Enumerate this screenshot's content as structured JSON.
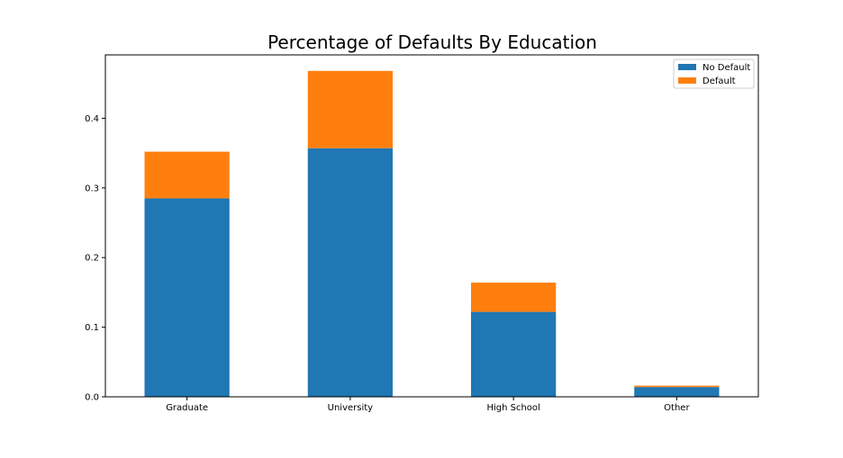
{
  "chart_data": {
    "type": "bar",
    "stacked": true,
    "title": "Percentage of Defaults By Education",
    "xlabel": "",
    "ylabel": "",
    "categories": [
      "Graduate",
      "University",
      "High School",
      "Other"
    ],
    "series": [
      {
        "name": "No Default",
        "values": [
          0.285,
          0.357,
          0.122,
          0.014
        ],
        "color": "#1f77b4"
      },
      {
        "name": "Default",
        "values": [
          0.067,
          0.111,
          0.042,
          0.002
        ],
        "color": "#ff7f0e"
      }
    ],
    "ylim": [
      0,
      0.491
    ],
    "yticks": [
      0.0,
      0.1,
      0.2,
      0.3,
      0.4
    ],
    "ytick_labels": [
      "0.0",
      "0.1",
      "0.2",
      "0.3",
      "0.4"
    ],
    "grid": false,
    "legend_position": "top-right"
  }
}
